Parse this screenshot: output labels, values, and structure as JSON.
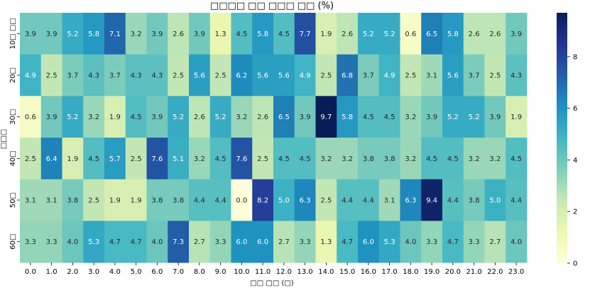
{
  "chart_data": {
    "type": "heatmap",
    "title": "□□□□ □□ □□□ □□ (%)",
    "xlabel": "□□ □□ (□)",
    "ylabel": "□□□",
    "x_categories": [
      "0.0",
      "1.0",
      "2.0",
      "3.0",
      "4.0",
      "5.0",
      "6.0",
      "7.0",
      "8.0",
      "9.0",
      "10.0",
      "11.0",
      "12.0",
      "13.0",
      "14.0",
      "15.0",
      "16.0",
      "17.0",
      "18.0",
      "19.0",
      "20.0",
      "21.0",
      "22.0",
      "23.0"
    ],
    "y_categories": [
      "10□ □□",
      "20□",
      "30□",
      "40□",
      "50□",
      "60□"
    ],
    "values": [
      [
        "3.9",
        "3.9",
        "5.2",
        "5.8",
        "7.1",
        "3.2",
        "3.9",
        "2.6",
        "3.9",
        "1.3",
        "4.5",
        "5.8",
        "4.5",
        "7.7",
        "1.9",
        "2.6",
        "5.2",
        "5.2",
        "0.6",
        "6.5",
        "5.8",
        "2.6",
        "2.6",
        "3.9"
      ],
      [
        "4.9",
        "2.5",
        "3.7",
        "4.3",
        "3.7",
        "4.3",
        "4.3",
        "2.5",
        "5.6",
        "2.5",
        "6.2",
        "5.6",
        "5.6",
        "4.9",
        "2.5",
        "6.8",
        "3.7",
        "4.9",
        "2.5",
        "3.1",
        "5.6",
        "3.7",
        "2.5",
        "4.3"
      ],
      [
        "0.6",
        "3.9",
        "5.2",
        "3.2",
        "1.9",
        "4.5",
        "3.9",
        "5.2",
        "2.6",
        "5.2",
        "3.2",
        "2.6",
        "6.5",
        "3.9",
        "9.7",
        "5.8",
        "4.5",
        "4.5",
        "3.2",
        "3.9",
        "5.2",
        "5.2",
        "3.9",
        "1.9"
      ],
      [
        "2.5",
        "6.4",
        "1.9",
        "4.5",
        "5.7",
        "2.5",
        "7.6",
        "5.1",
        "3.2",
        "4.5",
        "7.6",
        "2.5",
        "4.5",
        "4.5",
        "3.2",
        "3.2",
        "3.8",
        "3.8",
        "3.2",
        "4.5",
        "4.5",
        "3.2",
        "3.2",
        "4.5"
      ],
      [
        "3.1",
        "3.1",
        "3.8",
        "2.5",
        "1.9",
        "1.9",
        "3.8",
        "3.8",
        "4.4",
        "4.4",
        "0.0",
        "8.2",
        "5.0",
        "6.3",
        "2.5",
        "4.4",
        "4.4",
        "3.1",
        "6.3",
        "9.4",
        "4.4",
        "3.8",
        "5.0",
        "4.4"
      ],
      [
        "3.3",
        "3.3",
        "4.0",
        "5.3",
        "4.7",
        "4.7",
        "4.0",
        "7.3",
        "2.7",
        "3.3",
        "6.0",
        "6.0",
        "2.7",
        "3.3",
        "1.3",
        "4.7",
        "6.0",
        "5.3",
        "4.0",
        "3.3",
        "4.7",
        "3.3",
        "2.7",
        "4.0"
      ]
    ],
    "vmin": 0,
    "vmax": 9.7,
    "colormap": "YlGnBu",
    "colorbar_ticks": [
      "0",
      "2",
      "4",
      "6",
      "8"
    ],
    "grid": false,
    "legend": "colorbar-right"
  }
}
